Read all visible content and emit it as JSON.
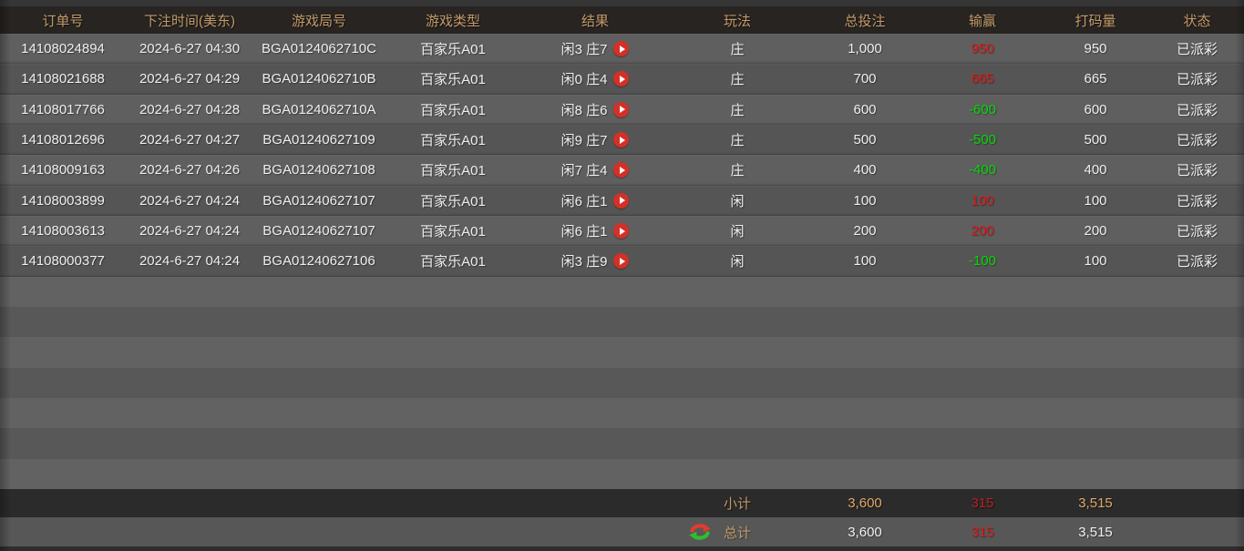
{
  "table": {
    "columns": [
      {
        "key": "order_id",
        "label": "订单号"
      },
      {
        "key": "bet_time",
        "label": "下注时间(美东)"
      },
      {
        "key": "round_id",
        "label": "游戏局号"
      },
      {
        "key": "game_type",
        "label": "游戏类型"
      },
      {
        "key": "result",
        "label": "结果"
      },
      {
        "key": "play",
        "label": "玩法"
      },
      {
        "key": "total_bet",
        "label": "总投注"
      },
      {
        "key": "win_loss",
        "label": "输赢"
      },
      {
        "key": "wager",
        "label": "打码量"
      },
      {
        "key": "status",
        "label": "状态"
      }
    ],
    "rows": [
      {
        "order_id": "14108024894",
        "bet_time": "2024-6-27 04:30",
        "round_id": "BGA0124062710C",
        "game_type": "百家乐A01",
        "result": "闲3 庄7",
        "play": "庄",
        "total_bet": "1,000",
        "win_loss": "950",
        "wager": "950",
        "status": "已派彩"
      },
      {
        "order_id": "14108021688",
        "bet_time": "2024-6-27 04:29",
        "round_id": "BGA0124062710B",
        "game_type": "百家乐A01",
        "result": "闲0 庄4",
        "play": "庄",
        "total_bet": "700",
        "win_loss": "665",
        "wager": "665",
        "status": "已派彩"
      },
      {
        "order_id": "14108017766",
        "bet_time": "2024-6-27 04:28",
        "round_id": "BGA0124062710A",
        "game_type": "百家乐A01",
        "result": "闲8 庄6",
        "play": "庄",
        "total_bet": "600",
        "win_loss": "-600",
        "wager": "600",
        "status": "已派彩"
      },
      {
        "order_id": "14108012696",
        "bet_time": "2024-6-27 04:27",
        "round_id": "BGA01240627109",
        "game_type": "百家乐A01",
        "result": "闲9 庄7",
        "play": "庄",
        "total_bet": "500",
        "win_loss": "-500",
        "wager": "500",
        "status": "已派彩"
      },
      {
        "order_id": "14108009163",
        "bet_time": "2024-6-27 04:26",
        "round_id": "BGA01240627108",
        "game_type": "百家乐A01",
        "result": "闲7 庄4",
        "play": "庄",
        "total_bet": "400",
        "win_loss": "-400",
        "wager": "400",
        "status": "已派彩"
      },
      {
        "order_id": "14108003899",
        "bet_time": "2024-6-27 04:24",
        "round_id": "BGA01240627107",
        "game_type": "百家乐A01",
        "result": "闲6 庄1",
        "play": "闲",
        "total_bet": "100",
        "win_loss": "100",
        "wager": "100",
        "status": "已派彩"
      },
      {
        "order_id": "14108003613",
        "bet_time": "2024-6-27 04:24",
        "round_id": "BGA01240627107",
        "game_type": "百家乐A01",
        "result": "闲6 庄1",
        "play": "闲",
        "total_bet": "200",
        "win_loss": "200",
        "wager": "200",
        "status": "已派彩"
      },
      {
        "order_id": "14108000377",
        "bet_time": "2024-6-27 04:24",
        "round_id": "BGA01240627106",
        "game_type": "百家乐A01",
        "result": "闲3 庄9",
        "play": "闲",
        "total_bet": "100",
        "win_loss": "-100",
        "wager": "100",
        "status": "已派彩"
      }
    ],
    "empty_row_count": 7,
    "subtotal": {
      "label": "小计",
      "total_bet": "3,600",
      "win_loss": "315",
      "wager": "3,515"
    },
    "total": {
      "label": "总计",
      "total_bet": "3,600",
      "win_loss": "315",
      "wager": "3,515"
    }
  },
  "icons": {
    "play_button": "play-icon",
    "refresh": "refresh-icon"
  },
  "colors": {
    "header_bg": "#272421",
    "header_text": "#c49a6a",
    "row_odd": "#5e5f5e",
    "row_even": "#555555",
    "empty_odd": "#626262",
    "empty_even": "#585858",
    "win": "#e51717",
    "loss": "#06d806",
    "play_btn": "#d43027",
    "subtotal_bg": "#2b2b2b",
    "subtotal_amount": "#e2a868",
    "subtotal_win": "#bf1f1f",
    "total_bg": "#575757",
    "top_strip": "#363636",
    "bottom_strip": "#2e2e2e"
  }
}
